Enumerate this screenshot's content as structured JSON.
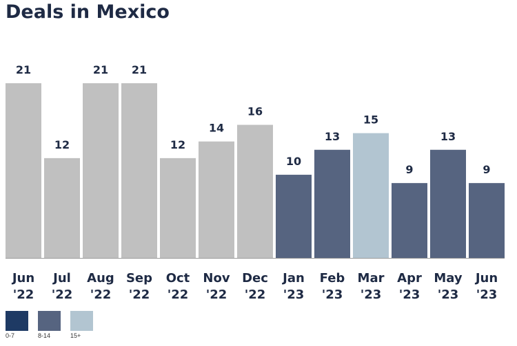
{
  "chart_data": {
    "type": "bar",
    "title": "Deals in Mexico",
    "categories": [
      [
        "Jun",
        "'22"
      ],
      [
        "Jul",
        "'22"
      ],
      [
        "Aug",
        "'22"
      ],
      [
        "Sep",
        "'22"
      ],
      [
        "Oct",
        "'22"
      ],
      [
        "Nov",
        "'22"
      ],
      [
        "Dec",
        "'22"
      ],
      [
        "Jan",
        "'23"
      ],
      [
        "Feb",
        "'23"
      ],
      [
        "Mar",
        "'23"
      ],
      [
        "Apr",
        "'23"
      ],
      [
        "May",
        "'23"
      ],
      [
        "Jun",
        "'23"
      ]
    ],
    "values": [
      21,
      12,
      21,
      21,
      12,
      14,
      16,
      10,
      13,
      15,
      9,
      13,
      9
    ],
    "bar_colors": [
      "#c0c0c0",
      "#c0c0c0",
      "#c0c0c0",
      "#c0c0c0",
      "#c0c0c0",
      "#c0c0c0",
      "#c0c0c0",
      "#566480",
      "#566480",
      "#b2c5d1",
      "#566480",
      "#566480",
      "#566480"
    ],
    "xlabel": "",
    "ylabel": "",
    "ylim": [
      0,
      21
    ]
  },
  "legend": [
    {
      "label": "0-7",
      "color": "#1e3a64"
    },
    {
      "label": "8-14",
      "color": "#566480"
    },
    {
      "label": "15+",
      "color": "#b2c5d1"
    }
  ]
}
